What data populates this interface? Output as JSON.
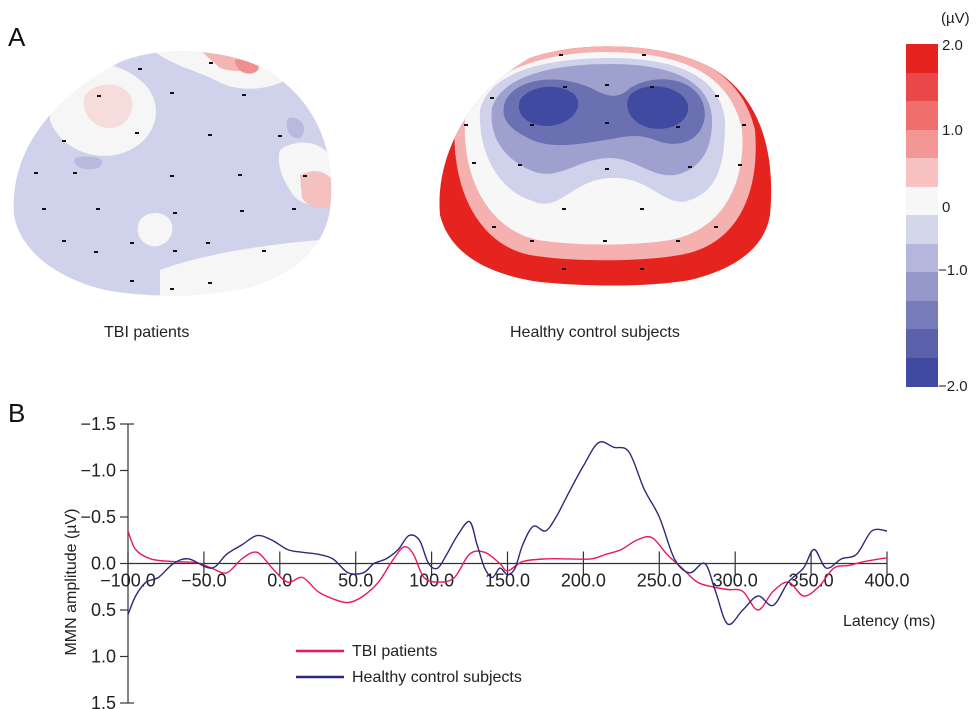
{
  "panel_a": {
    "label": "A",
    "maps": [
      {
        "caption": "TBI patients"
      },
      {
        "caption": "Healthy control subjects"
      }
    ],
    "colorbar": {
      "unit": "(µV)",
      "ticks": [
        "2.0",
        "1.0",
        "0",
        "−1.0",
        "−2.0"
      ],
      "colors": [
        "#e52420",
        "#ea4848",
        "#ef6e6e",
        "#f39696",
        "#f8c2c2",
        "#f7f7f7",
        "#d4d6ea",
        "#b4b7db",
        "#9598c9",
        "#777bb9",
        "#5a60aa",
        "#3f4aa0"
      ]
    }
  },
  "panel_b": {
    "label": "B",
    "legend": [
      {
        "name": "TBI patients",
        "color": "#e8195f"
      },
      {
        "name": "Healthy control subjects",
        "color": "#2b2a7b"
      }
    ]
  },
  "chart_data": {
    "type": "line",
    "xlabel": "Latency (ms)",
    "ylabel": "MMN amplitude (µV)",
    "xlim": [
      -100,
      400
    ],
    "ylim": [
      1.5,
      -1.5
    ],
    "x_ticks": [
      "−100.0",
      "−50.0",
      "0.0",
      "50.0",
      "100.0",
      "150.0",
      "200.0",
      "250.0",
      "300.0",
      "350.0",
      "400.0"
    ],
    "y_ticks": [
      "−1.5",
      "−1.0",
      "−0.5",
      "0.0",
      "0.5",
      "1.0",
      "1.5"
    ],
    "y_tick_values": [
      -1.5,
      -1.0,
      -0.5,
      0.0,
      0.5,
      1.0,
      1.5
    ],
    "series": [
      {
        "name": "TBI patients",
        "color": "#e8195f",
        "x": [
          -100,
          -95,
          -85,
          -70,
          -55,
          -45,
          -35,
          -25,
          -15,
          -5,
          5,
          15,
          25,
          35,
          45,
          55,
          65,
          75,
          82,
          88,
          95,
          105,
          115,
          125,
          135,
          145,
          150,
          160,
          175,
          190,
          205,
          215,
          225,
          235,
          245,
          255,
          265,
          275,
          285,
          295,
          305,
          315,
          325,
          335,
          345,
          355,
          365,
          375,
          385,
          395,
          400
        ],
        "y": [
          -0.35,
          -0.15,
          -0.05,
          -0.02,
          -0.01,
          0.05,
          0.1,
          -0.05,
          -0.12,
          0.05,
          0.2,
          0.15,
          0.3,
          0.38,
          0.42,
          0.35,
          0.2,
          -0.05,
          -0.18,
          -0.1,
          0.15,
          0.2,
          0.15,
          -0.1,
          -0.12,
          0.0,
          0.08,
          -0.02,
          -0.05,
          -0.05,
          -0.05,
          -0.1,
          -0.15,
          -0.25,
          -0.28,
          -0.1,
          0.05,
          0.2,
          0.25,
          0.28,
          0.3,
          0.5,
          0.3,
          0.2,
          0.35,
          0.25,
          0.05,
          0.02,
          -0.02,
          -0.05,
          -0.06
        ]
      },
      {
        "name": "Healthy control subjects",
        "color": "#2b2a7b",
        "x": [
          -100,
          -95,
          -88,
          -80,
          -70,
          -60,
          -45,
          -35,
          -25,
          -15,
          -5,
          5,
          15,
          25,
          35,
          45,
          55,
          62,
          70,
          78,
          85,
          92,
          98,
          104,
          110,
          117,
          125,
          130,
          135,
          140,
          145,
          150,
          155,
          160,
          167,
          175,
          182,
          190,
          200,
          210,
          220,
          230,
          240,
          250,
          260,
          270,
          280,
          287,
          295,
          305,
          315,
          325,
          335,
          345,
          352,
          360,
          370,
          380,
          390,
          400
        ],
        "y": [
          0.55,
          0.35,
          0.2,
          0.15,
          0.0,
          -0.05,
          0.05,
          -0.1,
          -0.2,
          -0.3,
          -0.25,
          -0.15,
          -0.12,
          -0.1,
          -0.05,
          0.1,
          0.1,
          0.0,
          -0.05,
          -0.15,
          -0.3,
          -0.25,
          0.0,
          0.05,
          -0.1,
          -0.3,
          -0.45,
          -0.2,
          0.05,
          0.15,
          0.05,
          0.12,
          0.05,
          -0.2,
          -0.4,
          -0.35,
          -0.5,
          -0.75,
          -1.05,
          -1.3,
          -1.25,
          -1.2,
          -0.8,
          -0.5,
          -0.05,
          0.1,
          0.0,
          0.3,
          0.65,
          0.5,
          0.35,
          0.45,
          0.2,
          0.05,
          -0.15,
          0.05,
          -0.05,
          -0.1,
          -0.35,
          -0.35
        ]
      }
    ],
    "grid": false,
    "legend_position": "bottom-left"
  }
}
